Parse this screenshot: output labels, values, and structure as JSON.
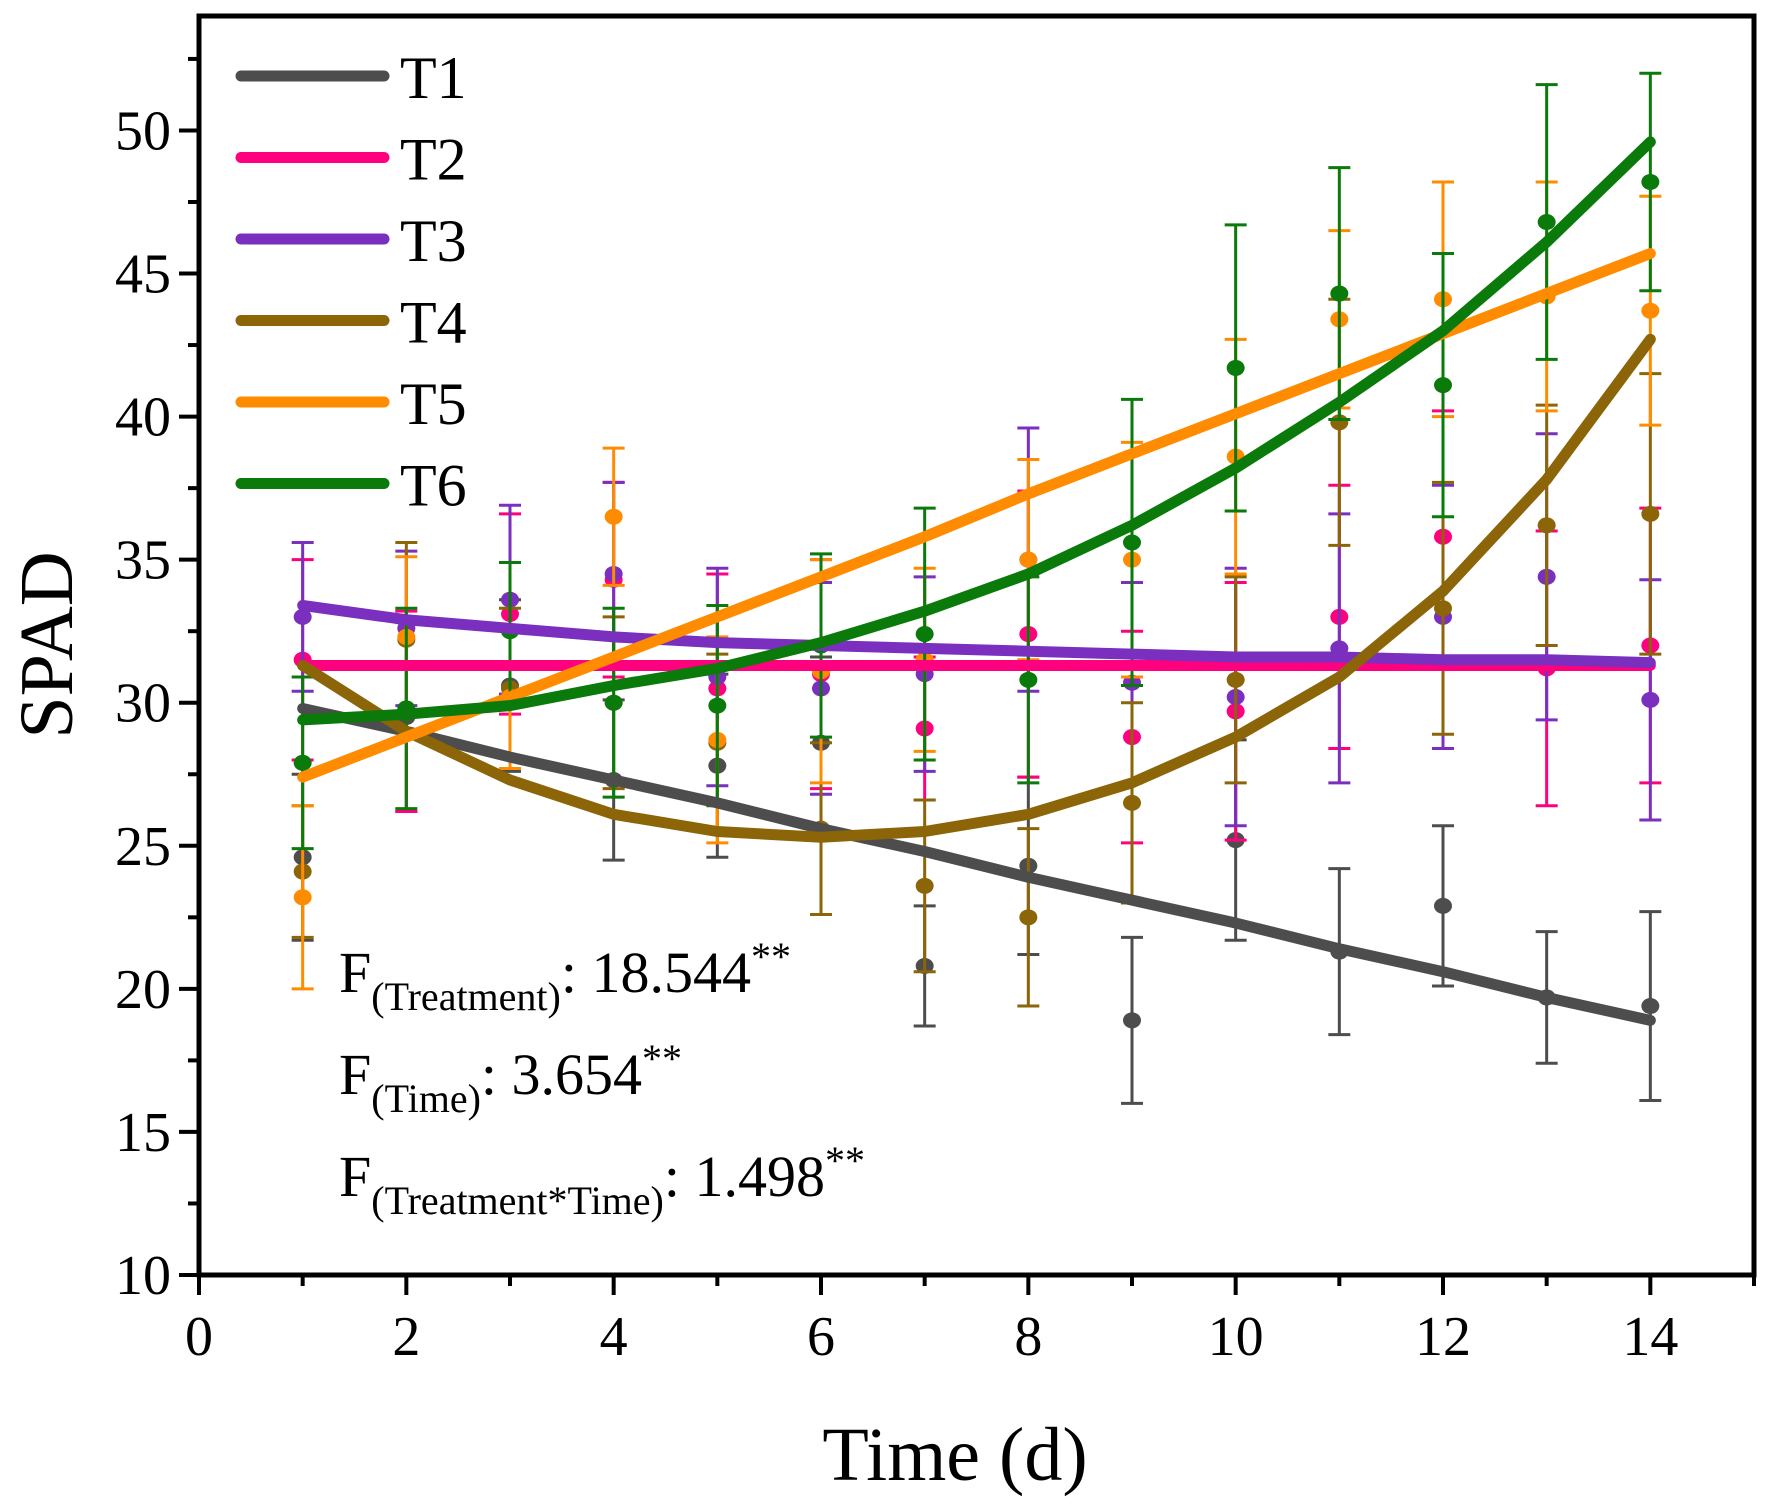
{
  "chart_data": {
    "type": "scatter",
    "title": "",
    "xlabel": "Time (d)",
    "ylabel": "SPAD",
    "xlim": [
      0,
      15
    ],
    "ylim": [
      10,
      54
    ],
    "xticks": [
      0,
      2,
      4,
      6,
      8,
      10,
      12,
      14
    ],
    "yticks": [
      10,
      15,
      20,
      25,
      30,
      35,
      40,
      45,
      50
    ],
    "grid": false,
    "legend_position": "top-left",
    "x": [
      1,
      2,
      3,
      4,
      5,
      6,
      7,
      8,
      9,
      10,
      11,
      12,
      13,
      14
    ],
    "series": [
      {
        "name": "T1",
        "color": "#4d4d4d",
        "values": [
          24.6,
          29.5,
          30.6,
          27.3,
          27.8,
          28.6,
          20.8,
          24.3,
          18.9,
          25.2,
          21.3,
          22.9,
          19.7,
          19.4
        ],
        "errors": [
          2.9,
          3.3,
          3.0,
          2.8,
          3.2,
          3.0,
          2.1,
          3.1,
          2.9,
          3.5,
          2.9,
          2.8,
          2.3,
          3.3
        ],
        "fit": [
          29.8,
          29.0,
          28.1,
          27.3,
          26.5,
          25.6,
          24.8,
          23.9,
          23.1,
          22.3,
          21.4,
          20.6,
          19.7,
          18.9
        ]
      },
      {
        "name": "T2",
        "color": "#ff007f",
        "values": [
          31.5,
          29.7,
          33.1,
          34.3,
          30.5,
          31.0,
          29.1,
          32.4,
          28.8,
          29.7,
          33.0,
          35.8,
          31.2,
          32.0
        ],
        "errors": [
          3.5,
          3.5,
          3.5,
          3.4,
          4.0,
          4.0,
          2.5,
          5.0,
          3.7,
          4.5,
          4.6,
          4.4,
          4.8,
          4.8
        ],
        "fit": [
          31.3,
          31.3,
          31.3,
          31.3,
          31.3,
          31.3,
          31.3,
          31.3,
          31.3,
          31.3,
          31.3,
          31.3,
          31.3,
          31.3
        ]
      },
      {
        "name": "T3",
        "color": "#7b2fbe",
        "values": [
          33.0,
          32.6,
          33.6,
          34.5,
          30.9,
          30.5,
          31.0,
          35.0,
          30.7,
          30.2,
          31.9,
          33.0,
          34.4,
          30.1
        ],
        "errors": [
          2.6,
          2.7,
          3.3,
          3.2,
          3.8,
          3.7,
          3.4,
          4.6,
          3.5,
          4.5,
          4.7,
          4.6,
          5.0,
          4.2
        ],
        "fit": [
          33.4,
          32.9,
          32.6,
          32.3,
          32.1,
          32.0,
          31.9,
          31.8,
          31.7,
          31.6,
          31.6,
          31.5,
          31.5,
          31.4
        ]
      },
      {
        "name": "T4",
        "color": "#8b6508",
        "values": [
          24.1,
          32.2,
          30.5,
          30.0,
          28.6,
          25.6,
          23.6,
          22.5,
          26.5,
          30.8,
          39.8,
          33.3,
          36.2,
          36.6
        ],
        "errors": [
          2.3,
          3.4,
          2.8,
          3.0,
          3.1,
          3.0,
          3.0,
          3.1,
          3.5,
          3.6,
          4.3,
          4.4,
          4.2,
          4.9
        ],
        "fit": [
          31.3,
          29.0,
          27.3,
          26.1,
          25.5,
          25.3,
          25.5,
          26.1,
          27.2,
          28.8,
          30.9,
          33.9,
          37.8,
          42.7
        ]
      },
      {
        "name": "T5",
        "color": "#ff8c00",
        "values": [
          23.2,
          32.3,
          30.2,
          36.5,
          28.7,
          31.1,
          31.5,
          35.0,
          35.0,
          38.6,
          43.4,
          44.1,
          44.2,
          43.7
        ],
        "errors": [
          3.2,
          2.8,
          2.5,
          2.4,
          3.6,
          3.9,
          3.2,
          3.5,
          4.1,
          4.1,
          3.1,
          4.1,
          4.0,
          4.0
        ],
        "fit": [
          27.4,
          28.8,
          30.2,
          31.6,
          33.0,
          34.4,
          35.8,
          37.3,
          38.7,
          40.1,
          41.5,
          42.9,
          44.3,
          45.7
        ]
      },
      {
        "name": "T6",
        "color": "#0a7a0a",
        "values": [
          27.9,
          29.8,
          32.5,
          30.0,
          29.9,
          32.0,
          32.4,
          30.8,
          35.6,
          41.7,
          44.3,
          41.1,
          46.8,
          48.2
        ],
        "errors": [
          3.0,
          3.5,
          2.4,
          3.3,
          3.5,
          3.2,
          4.4,
          3.6,
          5.0,
          5.0,
          4.4,
          4.6,
          4.8,
          3.8
        ],
        "fit": [
          29.4,
          29.6,
          29.9,
          30.6,
          31.2,
          32.1,
          33.2,
          34.5,
          36.2,
          38.2,
          40.5,
          43.0,
          46.1,
          49.6
        ]
      }
    ],
    "annotations": [
      {
        "main": "F",
        "sub": "(Treatment)",
        "value": ": 18.544",
        "sup": "**"
      },
      {
        "main": "F",
        "sub": "(Time)",
        "value": ": 3.654",
        "sup": "**"
      },
      {
        "main": "F",
        "sub": "(Treatment*Time)",
        "value": ": 1.498",
        "sup": "**"
      }
    ]
  }
}
